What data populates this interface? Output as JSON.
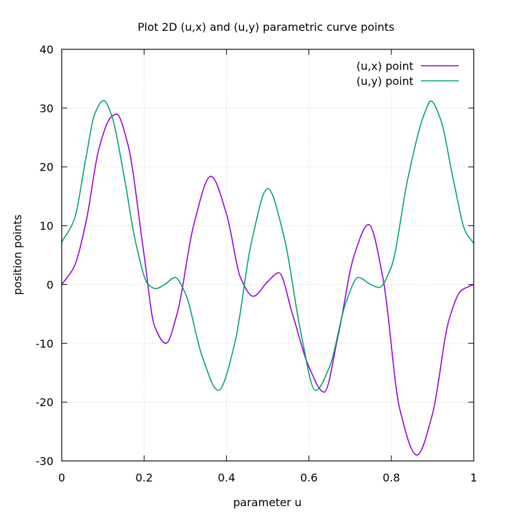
{
  "chart_data": {
    "type": "line",
    "title": "Plot 2D (u,x) and (u,y) parametric curve points",
    "xlabel": "parameter u",
    "ylabel": "position points",
    "xlim": [
      0,
      1
    ],
    "ylim": [
      -30,
      40
    ],
    "xticks": [
      "0",
      "0.2",
      "0.4",
      "0.6",
      "0.8",
      "1"
    ],
    "yticks": [
      "-30",
      "-20",
      "-10",
      "0",
      "10",
      "20",
      "30",
      "40"
    ],
    "grid": true,
    "legend_position": "top-right",
    "series": [
      {
        "name": "(u,x) point",
        "color": "#9400d3",
        "x": [
          0,
          0.03,
          0.06,
          0.09,
          0.12,
          0.133,
          0.16,
          0.2,
          0.225,
          0.253,
          0.28,
          0.32,
          0.362,
          0.4,
          0.435,
          0.465,
          0.5,
          0.527,
          0.56,
          0.6,
          0.637,
          0.67,
          0.71,
          0.745,
          0.78,
          0.82,
          0.862,
          0.9,
          0.94,
          0.97,
          1
        ],
        "values": [
          0,
          3,
          11,
          23,
          28.5,
          29,
          24,
          5,
          -7,
          -10,
          -5,
          10,
          18.4,
          12,
          1,
          -2,
          0.5,
          2,
          -5,
          -14,
          -18.3,
          -9,
          5,
          10.2,
          1,
          -21,
          -29,
          -22,
          -6,
          -1,
          0
        ]
      },
      {
        "name": "(u,y) point",
        "color": "#009e73",
        "x": [
          0,
          0.03,
          0.06,
          0.08,
          0.102,
          0.12,
          0.15,
          0.18,
          0.21,
          0.228,
          0.25,
          0.275,
          0.3,
          0.34,
          0.38,
          0.42,
          0.46,
          0.5,
          0.54,
          0.58,
          0.616,
          0.65,
          0.69,
          0.72,
          0.75,
          0.77,
          0.8,
          0.84,
          0.88,
          0.896,
          0.92,
          0.95,
          0.98,
          1
        ],
        "values": [
          7.2,
          11,
          22,
          29,
          31.3,
          29,
          19,
          7,
          0,
          -0.7,
          0,
          1.2,
          -1.5,
          -12,
          -18,
          -10,
          7,
          16.3,
          8,
          -8,
          -18,
          -14,
          -3,
          1.2,
          0,
          -0.5,
          3,
          18,
          29,
          31.2,
          28,
          18,
          9,
          7
        ]
      }
    ]
  }
}
